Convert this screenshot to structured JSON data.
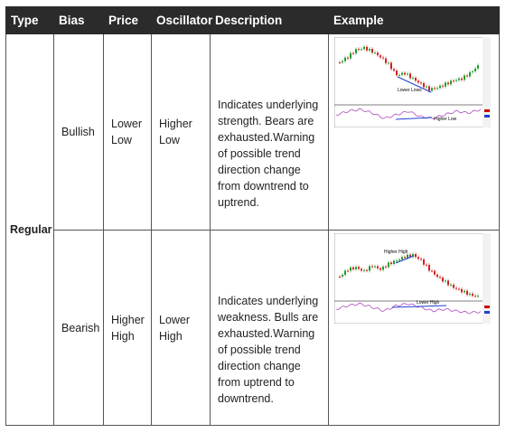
{
  "headers": {
    "type": "Type",
    "bias": "Bias",
    "price": "Price",
    "oscillator": "Oscillator",
    "description": "Description",
    "example": "Example"
  },
  "type_label": "Regular",
  "rows": [
    {
      "bias": "Bullish",
      "price": [
        "Lower",
        "Low"
      ],
      "oscillator": [
        "Higher",
        "Low"
      ],
      "description": [
        "Indicates underlying",
        "strength. Bears are",
        "exhausted.Warning",
        "of possible trend",
        "direction change",
        "from downtrend to",
        "uptrend."
      ],
      "chart": {
        "price_annotation": "Lower Lows",
        "oscillator_annotation": "Higher Low"
      }
    },
    {
      "bias": "Bearish",
      "price": [
        "Higher",
        "High"
      ],
      "oscillator": [
        "Lower",
        "High"
      ],
      "description": [
        "Indicates underlying",
        "weakness. Bulls are",
        "exhausted.Warning",
        "of possible trend",
        "direction change",
        "from uptrend to",
        "downtrend."
      ],
      "chart": {
        "price_annotation": "Higher High",
        "oscillator_annotation": "Lower High"
      }
    }
  ],
  "colors": {
    "header_bg": "#2b2b2b",
    "type_text": "#d80000",
    "up_candle": "#1a9e2a",
    "down_candle": "#d02020",
    "trendline": "#1f3fd0",
    "oscillator": "#b04bc0"
  }
}
